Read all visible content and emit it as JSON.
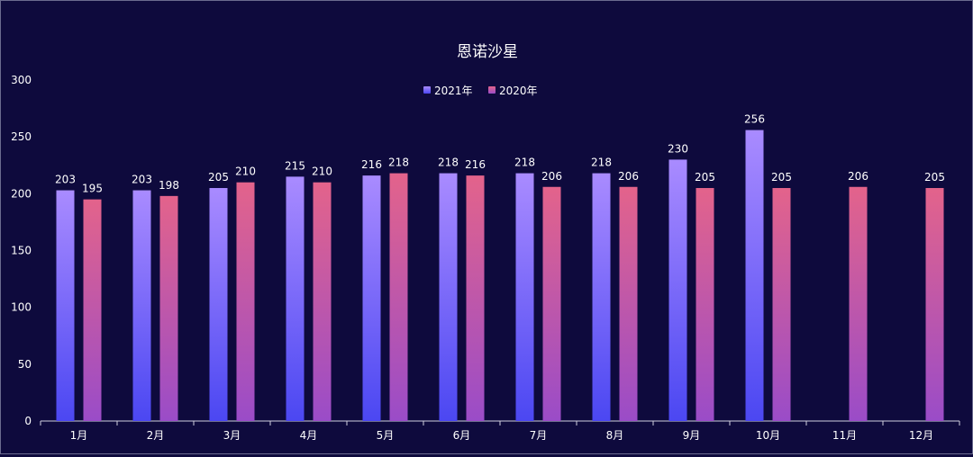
{
  "chart_data": {
    "type": "bar",
    "title": "恩诺沙星",
    "xlabel": "",
    "ylabel": "",
    "ylim": [
      0,
      300
    ],
    "yticks": [
      0,
      50,
      100,
      150,
      200,
      250,
      300
    ],
    "categories": [
      "1月",
      "2月",
      "3月",
      "4月",
      "5月",
      "6月",
      "7月",
      "8月",
      "9月",
      "10月",
      "11月",
      "12月"
    ],
    "series": [
      {
        "name": "2021年",
        "values": [
          203,
          203,
          205,
          215,
          216,
          218,
          218,
          218,
          230,
          256,
          null,
          null
        ],
        "color_top": "#a98bff",
        "color_bottom": "#4b47f2"
      },
      {
        "name": "2020年",
        "values": [
          195,
          198,
          210,
          210,
          218,
          216,
          206,
          206,
          205,
          205,
          206,
          205
        ],
        "color_top": "#e3638b",
        "color_bottom": "#9a4cc8"
      }
    ],
    "legend_position": "top-center",
    "grid": false,
    "colors": {
      "background": "#0e0a3d",
      "text": "#ffffff",
      "axis": "#d0d0e0"
    }
  }
}
